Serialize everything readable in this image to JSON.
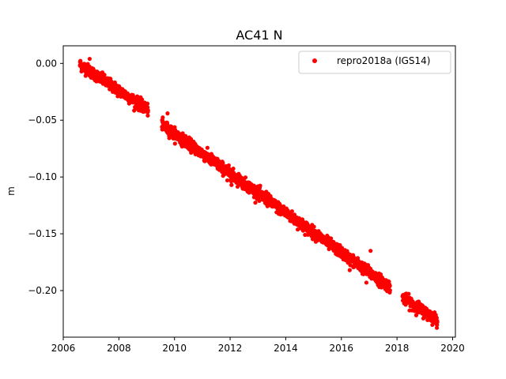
{
  "chart_data": {
    "type": "scatter",
    "title": "AC41 N",
    "xlabel": "",
    "ylabel": "m",
    "xlim": [
      2006.0,
      2020.1
    ],
    "ylim": [
      -0.241,
      0.0155
    ],
    "x_ticks": [
      2006,
      2008,
      2010,
      2012,
      2014,
      2016,
      2018,
      2020
    ],
    "x_tick_labels": [
      "2006",
      "2008",
      "2010",
      "2012",
      "2014",
      "2016",
      "2018",
      "2020"
    ],
    "y_ticks": [
      0.0,
      -0.05,
      -0.1,
      -0.15,
      -0.2
    ],
    "y_tick_labels": [
      "0.00",
      "−0.05",
      "−0.10",
      "−0.15",
      "−0.20"
    ],
    "grid": false,
    "legend_position": "top-right",
    "series": [
      {
        "name": "repro2018a (IGS14)",
        "color": "#ff0000",
        "marker": "circle",
        "trend_segments": [
          {
            "x_start": 2006.6,
            "x_end": 2009.05,
            "y_start": -0.001,
            "y_end": -0.041
          },
          {
            "x_start": 2009.55,
            "x_end": 2017.75,
            "y_start": -0.054,
            "y_end": -0.197
          },
          {
            "x_start": 2018.2,
            "x_end": 2019.45,
            "y_start": -0.206,
            "y_end": -0.226
          }
        ],
        "scatter_amplitude": 0.0025,
        "outliers": [
          {
            "x": 2006.95,
            "y": 0.004
          },
          {
            "x": 2009.75,
            "y": -0.044
          },
          {
            "x": 2010.65,
            "y": -0.072
          },
          {
            "x": 2011.9,
            "y": -0.103
          },
          {
            "x": 2012.05,
            "y": -0.107
          },
          {
            "x": 2013.05,
            "y": -0.121
          },
          {
            "x": 2013.3,
            "y": -0.113
          },
          {
            "x": 2016.45,
            "y": -0.179
          },
          {
            "x": 2017.05,
            "y": -0.165
          },
          {
            "x": 2016.3,
            "y": -0.182
          },
          {
            "x": 2016.9,
            "y": -0.193
          }
        ]
      }
    ]
  }
}
